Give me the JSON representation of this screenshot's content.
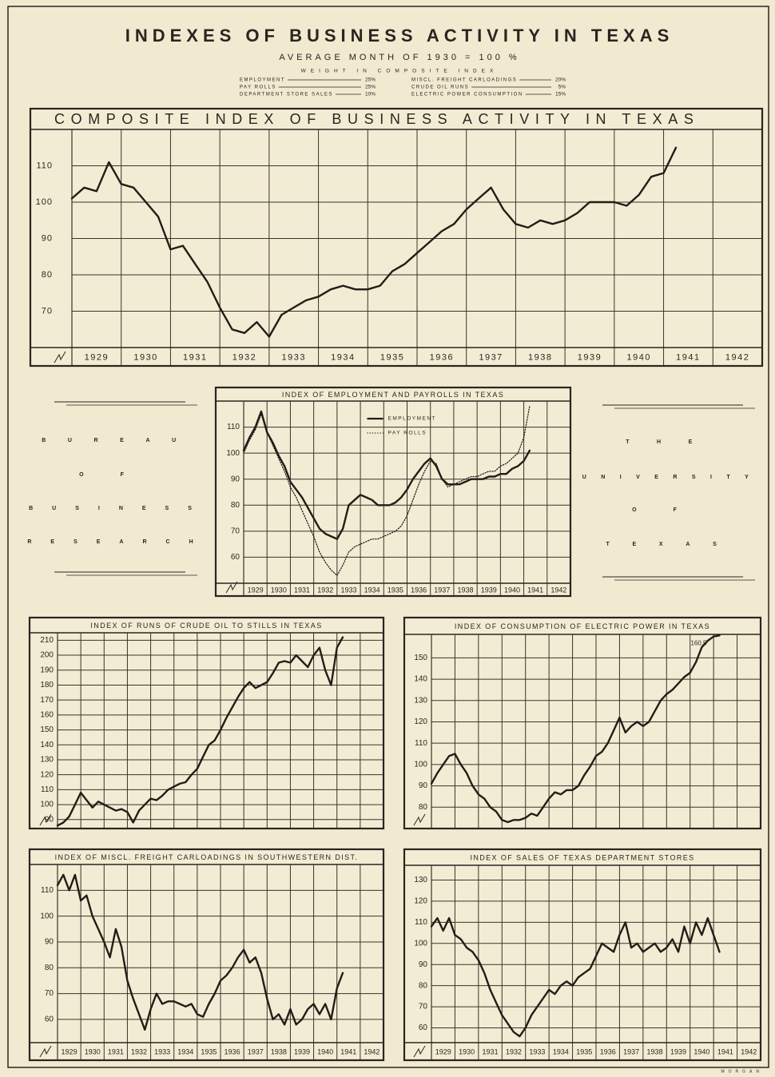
{
  "header": {
    "title": "INDEXES OF BUSINESS ACTIVITY IN TEXAS",
    "subtitle": "AVERAGE MONTH OF 1930 = 100 %",
    "weights_heading": "WEIGHT IN COMPOSITE INDEX",
    "weights": [
      {
        "name": "EMPLOYMENT",
        "weight": "25%"
      },
      {
        "name": "PAY ROLLS",
        "weight": "25%"
      },
      {
        "name": "DEPARTMENT STORE SALES",
        "weight": "10%"
      },
      {
        "name": "MISCL. FREIGHT CARLOADINGS",
        "weight": "20%"
      },
      {
        "name": "CRUDE OIL RUNS",
        "weight": "5%"
      },
      {
        "name": "ELECTRIC POWER CONSUMPTION",
        "weight": "15%"
      }
    ]
  },
  "side_left": [
    "BUREAU",
    "OF",
    "BUSINESS",
    "RESEARCH"
  ],
  "side_right": [
    "THE",
    "UNIVERSITY",
    "OF",
    "TEXAS"
  ],
  "signature": "MORGAN",
  "chart_data": [
    {
      "type": "line",
      "title": "COMPOSITE INDEX OF BUSINESS ACTIVITY IN TEXAS",
      "x": [
        1929,
        1929.25,
        1929.5,
        1929.75,
        1930,
        1930.25,
        1930.5,
        1930.75,
        1931,
        1931.25,
        1931.5,
        1931.75,
        1932,
        1932.25,
        1932.5,
        1932.75,
        1933,
        1933.25,
        1933.5,
        1933.75,
        1934,
        1934.25,
        1934.5,
        1934.75,
        1935,
        1935.25,
        1935.5,
        1935.75,
        1936,
        1936.25,
        1936.5,
        1936.75,
        1937,
        1937.25,
        1937.5,
        1937.75,
        1938,
        1938.25,
        1938.5,
        1938.75,
        1939,
        1939.25,
        1939.5,
        1939.75,
        1940,
        1940.25,
        1940.5,
        1940.75,
        1941,
        1941.25
      ],
      "series": [
        {
          "color": "#221d18",
          "style": "solid",
          "values": [
            101,
            104,
            103,
            111,
            105,
            104,
            100,
            96,
            87,
            88,
            83,
            78,
            71,
            65,
            64,
            67,
            63,
            69,
            71,
            73,
            74,
            76,
            77,
            76,
            76,
            77,
            81,
            83,
            86,
            89,
            92,
            94,
            98,
            101,
            104,
            98,
            94,
            93,
            95,
            94,
            95,
            97,
            100,
            100,
            100,
            99,
            102,
            107,
            108,
            115
          ]
        }
      ],
      "xlim": [
        1929,
        1943
      ],
      "xticks": [
        1929,
        1930,
        1931,
        1932,
        1933,
        1934,
        1935,
        1936,
        1937,
        1938,
        1939,
        1940,
        1941,
        1942
      ],
      "show_xtick_labels": true,
      "ylim": [
        60,
        120
      ],
      "yticks": [
        70,
        80,
        90,
        100,
        110
      ],
      "grid": true
    },
    {
      "type": "line",
      "title": "INDEX OF EMPLOYMENT AND PAYROLLS IN TEXAS",
      "x": [
        1929,
        1929.25,
        1929.5,
        1929.75,
        1930,
        1930.25,
        1930.5,
        1930.75,
        1931,
        1931.25,
        1931.5,
        1931.75,
        1932,
        1932.25,
        1932.5,
        1932.75,
        1933,
        1933.25,
        1933.5,
        1933.75,
        1934,
        1934.25,
        1934.5,
        1934.75,
        1935,
        1935.25,
        1935.5,
        1935.75,
        1936,
        1936.25,
        1936.5,
        1936.75,
        1937,
        1937.25,
        1937.5,
        1937.75,
        1938,
        1938.25,
        1938.5,
        1938.75,
        1939,
        1939.25,
        1939.5,
        1939.75,
        1940,
        1940.25,
        1940.5,
        1940.75,
        1941,
        1941.25
      ],
      "series": [
        {
          "name": "EMPLOYMENT",
          "color": "#221d18",
          "style": "solid",
          "values": [
            101,
            106,
            110,
            116,
            108,
            104,
            99,
            95,
            89,
            86,
            83,
            79,
            75,
            71,
            69,
            68,
            67,
            71,
            80,
            82,
            84,
            83,
            82,
            80,
            80,
            80,
            81,
            83,
            86,
            90,
            93,
            96,
            98,
            95,
            90,
            88,
            88,
            88,
            89,
            90,
            90,
            90,
            91,
            91,
            92,
            92,
            94,
            95,
            97,
            101
          ]
        },
        {
          "name": "PAY ROLLS",
          "color": "#221d18",
          "style": "dotted",
          "values": [
            100,
            105,
            109,
            115,
            108,
            103,
            98,
            93,
            87,
            83,
            78,
            73,
            68,
            62,
            58,
            55,
            53,
            57,
            62,
            64,
            65,
            66,
            67,
            67,
            68,
            69,
            70,
            72,
            76,
            82,
            88,
            93,
            97,
            96,
            90,
            87,
            88,
            89,
            90,
            91,
            91,
            92,
            93,
            93,
            95,
            96,
            98,
            100,
            106,
            118
          ]
        }
      ],
      "legend": "upper-center",
      "xlim": [
        1929,
        1943
      ],
      "xticks": [
        1929,
        1930,
        1931,
        1932,
        1933,
        1934,
        1935,
        1936,
        1937,
        1938,
        1939,
        1940,
        1941,
        1942
      ],
      "show_xtick_labels": true,
      "ylim": [
        50,
        120
      ],
      "yticks": [
        60,
        70,
        80,
        90,
        100,
        110
      ],
      "grid": true
    },
    {
      "type": "line",
      "title": "INDEX OF RUNS OF CRUDE OIL TO STILLS IN TEXAS",
      "x": [
        1929,
        1929.25,
        1929.5,
        1929.75,
        1930,
        1930.25,
        1930.5,
        1930.75,
        1931,
        1931.25,
        1931.5,
        1931.75,
        1932,
        1932.25,
        1932.5,
        1932.75,
        1933,
        1933.25,
        1933.5,
        1933.75,
        1934,
        1934.25,
        1934.5,
        1934.75,
        1935,
        1935.25,
        1935.5,
        1935.75,
        1936,
        1936.25,
        1936.5,
        1936.75,
        1937,
        1937.25,
        1937.5,
        1937.75,
        1938,
        1938.25,
        1938.5,
        1938.75,
        1939,
        1939.25,
        1939.5,
        1939.75,
        1940,
        1940.25,
        1940.5,
        1940.75,
        1941,
        1941.25
      ],
      "series": [
        {
          "color": "#221d18",
          "style": "solid",
          "values": [
            86,
            88,
            92,
            100,
            108,
            103,
            98,
            102,
            100,
            98,
            96,
            97,
            95,
            88,
            96,
            100,
            104,
            103,
            106,
            110,
            112,
            114,
            115,
            120,
            124,
            132,
            140,
            143,
            150,
            158,
            165,
            172,
            178,
            182,
            178,
            180,
            182,
            188,
            195,
            196,
            195,
            200,
            196,
            192,
            200,
            205,
            190,
            180,
            205,
            212
          ]
        }
      ],
      "xlim": [
        1929,
        1943
      ],
      "xticks": [
        1929,
        1930,
        1931,
        1932,
        1933,
        1934,
        1935,
        1936,
        1937,
        1938,
        1939,
        1940,
        1941,
        1942
      ],
      "show_xtick_labels": false,
      "ylim": [
        84,
        215
      ],
      "yticks": [
        90,
        100,
        110,
        120,
        130,
        140,
        150,
        160,
        170,
        180,
        190,
        200,
        210
      ],
      "grid": true
    },
    {
      "type": "line",
      "title": "INDEX OF CONSUMPTION OF ELECTRIC POWER IN TEXAS",
      "annotation": "160.5",
      "x": [
        1929,
        1929.25,
        1929.5,
        1929.75,
        1930,
        1930.25,
        1930.5,
        1930.75,
        1931,
        1931.25,
        1931.5,
        1931.75,
        1932,
        1932.25,
        1932.5,
        1932.75,
        1933,
        1933.25,
        1933.5,
        1933.75,
        1934,
        1934.25,
        1934.5,
        1934.75,
        1935,
        1935.25,
        1935.5,
        1935.75,
        1936,
        1936.25,
        1936.5,
        1936.75,
        1937,
        1937.25,
        1937.5,
        1937.75,
        1938,
        1938.25,
        1938.5,
        1938.75,
        1939,
        1939.25,
        1939.5,
        1939.75,
        1940,
        1940.25,
        1940.5,
        1940.75,
        1941,
        1941.25
      ],
      "series": [
        {
          "color": "#221d18",
          "style": "solid",
          "values": [
            91,
            96,
            100,
            104,
            105,
            100,
            96,
            90,
            86,
            84,
            80,
            78,
            74,
            73,
            74,
            74,
            75,
            77,
            76,
            80,
            84,
            87,
            86,
            88,
            88,
            90,
            95,
            99,
            104,
            106,
            110,
            116,
            122,
            115,
            118,
            120,
            118,
            120,
            125,
            130,
            133,
            135,
            138,
            141,
            143,
            148,
            155,
            158,
            160,
            160.5
          ]
        }
      ],
      "xlim": [
        1929,
        1943
      ],
      "xticks": [
        1929,
        1930,
        1931,
        1932,
        1933,
        1934,
        1935,
        1936,
        1937,
        1938,
        1939,
        1940,
        1941,
        1942
      ],
      "show_xtick_labels": false,
      "ylim": [
        70,
        161
      ],
      "yticks": [
        80,
        90,
        100,
        110,
        120,
        130,
        140,
        150
      ],
      "grid": true
    },
    {
      "type": "line",
      "title": "INDEX OF MISCL. FREIGHT CARLOADINGS IN SOUTHWESTERN DIST.",
      "x": [
        1929,
        1929.25,
        1929.5,
        1929.75,
        1930,
        1930.25,
        1930.5,
        1930.75,
        1931,
        1931.25,
        1931.5,
        1931.75,
        1932,
        1932.25,
        1932.5,
        1932.75,
        1933,
        1933.25,
        1933.5,
        1933.75,
        1934,
        1934.25,
        1934.5,
        1934.75,
        1935,
        1935.25,
        1935.5,
        1935.75,
        1936,
        1936.25,
        1936.5,
        1936.75,
        1937,
        1937.25,
        1937.5,
        1937.75,
        1938,
        1938.25,
        1938.5,
        1938.75,
        1939,
        1939.25,
        1939.5,
        1939.75,
        1940,
        1940.25,
        1940.5,
        1940.75,
        1941,
        1941.25
      ],
      "series": [
        {
          "color": "#221d18",
          "style": "solid",
          "values": [
            112,
            116,
            110,
            116,
            106,
            108,
            100,
            95,
            90,
            84,
            95,
            88,
            75,
            68,
            62,
            56,
            64,
            70,
            66,
            67,
            67,
            66,
            65,
            66,
            62,
            61,
            66,
            70,
            75,
            77,
            80,
            84,
            87,
            82,
            84,
            78,
            68,
            60,
            62,
            58,
            64,
            58,
            60,
            64,
            66,
            62,
            66,
            60,
            72,
            78
          ]
        }
      ],
      "xlim": [
        1929,
        1943
      ],
      "xticks": [
        1929,
        1930,
        1931,
        1932,
        1933,
        1934,
        1935,
        1936,
        1937,
        1938,
        1939,
        1940,
        1941,
        1942
      ],
      "show_xtick_labels": true,
      "ylim": [
        51,
        120
      ],
      "yticks": [
        60,
        70,
        80,
        90,
        100,
        110
      ],
      "grid": true
    },
    {
      "type": "line",
      "title": "INDEX OF SALES OF TEXAS DEPARTMENT STORES",
      "x": [
        1929,
        1929.25,
        1929.5,
        1929.75,
        1930,
        1930.25,
        1930.5,
        1930.75,
        1931,
        1931.25,
        1931.5,
        1931.75,
        1932,
        1932.25,
        1932.5,
        1932.75,
        1933,
        1933.25,
        1933.5,
        1933.75,
        1934,
        1934.25,
        1934.5,
        1934.75,
        1935,
        1935.25,
        1935.5,
        1935.75,
        1936,
        1936.25,
        1936.5,
        1936.75,
        1937,
        1937.25,
        1937.5,
        1937.75,
        1938,
        1938.25,
        1938.5,
        1938.75,
        1939,
        1939.25,
        1939.5,
        1939.75,
        1940,
        1940.25,
        1940.5,
        1940.75,
        1941,
        1941.25
      ],
      "series": [
        {
          "color": "#221d18",
          "style": "solid",
          "values": [
            108,
            112,
            106,
            112,
            104,
            102,
            98,
            96,
            92,
            86,
            78,
            72,
            66,
            62,
            58,
            56,
            60,
            66,
            70,
            74,
            78,
            76,
            80,
            82,
            80,
            84,
            86,
            88,
            94,
            100,
            98,
            96,
            104,
            110,
            98,
            100,
            96,
            98,
            100,
            96,
            98,
            102,
            96,
            108,
            100,
            110,
            104,
            112,
            104,
            96
          ]
        }
      ],
      "xlim": [
        1929,
        1943
      ],
      "xticks": [
        1929,
        1930,
        1931,
        1932,
        1933,
        1934,
        1935,
        1936,
        1937,
        1938,
        1939,
        1940,
        1941,
        1942
      ],
      "show_xtick_labels": true,
      "ylim": [
        53,
        137
      ],
      "yticks": [
        60,
        70,
        80,
        90,
        100,
        110,
        120,
        130
      ],
      "grid": true
    }
  ]
}
